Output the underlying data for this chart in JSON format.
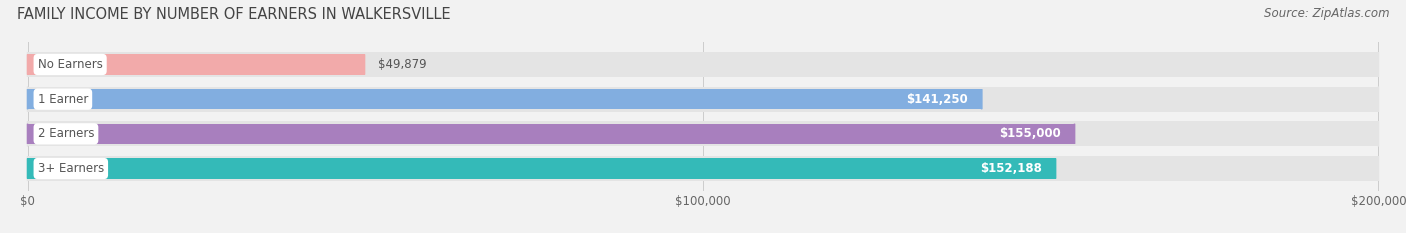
{
  "title": "FAMILY INCOME BY NUMBER OF EARNERS IN WALKERSVILLE",
  "source": "Source: ZipAtlas.com",
  "categories": [
    "No Earners",
    "1 Earner",
    "2 Earners",
    "3+ Earners"
  ],
  "values": [
    49879,
    141250,
    155000,
    152188
  ],
  "bar_colors": [
    "#f2aaaa",
    "#82aee0",
    "#a87fbe",
    "#34bab8"
  ],
  "value_labels": [
    "$49,879",
    "$141,250",
    "$155,000",
    "$152,188"
  ],
  "xlim": [
    0,
    200000
  ],
  "xtick_labels": [
    "$0",
    "$100,000",
    "$200,000"
  ],
  "xtick_vals": [
    0,
    100000,
    200000
  ],
  "background_color": "#f2f2f2",
  "bar_bg_color": "#e4e4e4",
  "title_fontsize": 10.5,
  "source_fontsize": 8.5,
  "label_text_color": "#555555",
  "value_label_color_dark": "#555555",
  "bar_label_bg": "#ffffff"
}
